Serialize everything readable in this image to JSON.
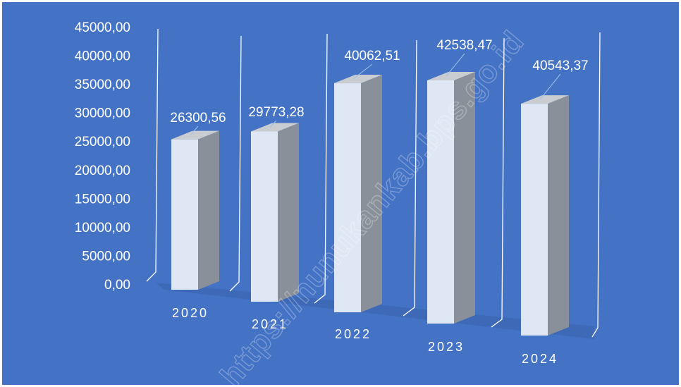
{
  "chart_data": {
    "type": "bar",
    "style": "3d-column",
    "categories": [
      "2020",
      "2021",
      "2022",
      "2023",
      "2024"
    ],
    "values": [
      26300.56,
      29773.28,
      40062.51,
      42538.47,
      40543.37
    ],
    "data_labels": [
      "26300,56",
      "29773,28",
      "40062,51",
      "42538,47",
      "40543,37"
    ],
    "yticks": [
      "0,00",
      "5000,00",
      "10000,00",
      "15000,00",
      "20000,00",
      "25000,00",
      "30000,00",
      "35000,00",
      "40000,00",
      "45000,00"
    ],
    "ylim": [
      0,
      45000
    ],
    "title": "",
    "xlabel": "",
    "ylabel": "",
    "legend": "none",
    "grid": false
  },
  "colors": {
    "background": "#4472c4",
    "bar_front": "#dfe6f4",
    "bar_side": "#8a9099",
    "bar_top": "#c9ccd1",
    "floor_shadow": "#3a63ad",
    "text": "#ffffff"
  },
  "watermark": "https://nunukankab.bps.go.id"
}
